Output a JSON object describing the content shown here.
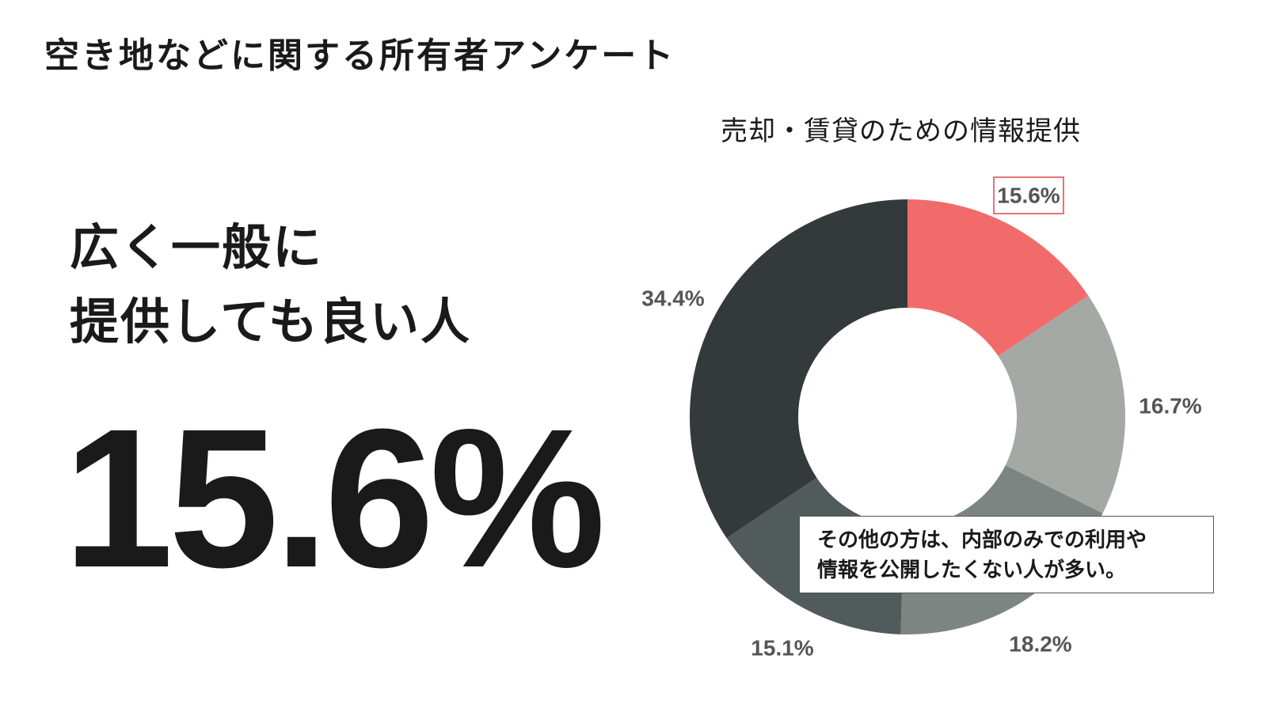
{
  "page_title": "空き地などに関する所有者アンケート",
  "headline": {
    "line1": "広く一般に",
    "line2": "提供しても良い人"
  },
  "highlight_value": "15.6%",
  "note": {
    "line1": "その他の方は、内部のみでの利用や",
    "line2": "情報を公開したくない人が多い。"
  },
  "colors": {
    "highlight": "#f26b6b",
    "highlight_box": "#e87373",
    "label_text": "#555555"
  },
  "chart_data": {
    "type": "pie",
    "style": "donut",
    "title": "売却・賃貸のための情報提供",
    "start": "12 o'clock, clockwise",
    "values": [
      15.6,
      16.7,
      18.2,
      15.1,
      34.4
    ],
    "labels": [
      "15.6%",
      "16.7%",
      "18.2%",
      "15.1%",
      "34.4%"
    ],
    "colors": [
      "#f26b6b",
      "#a4a9a6",
      "#7d8582",
      "#525b5c",
      "#343a3c"
    ],
    "highlighted_index": 0
  }
}
